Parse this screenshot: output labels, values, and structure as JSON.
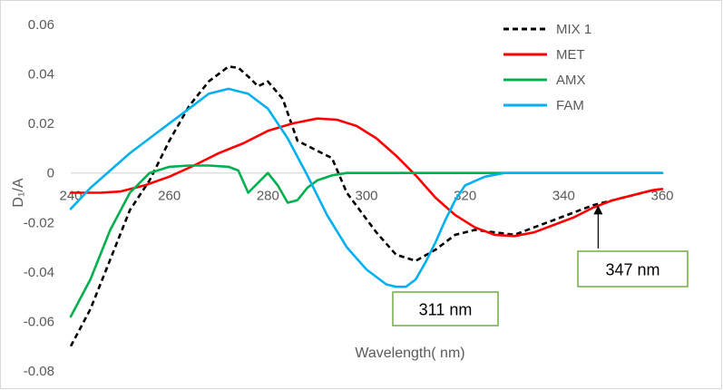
{
  "chart_data": {
    "type": "line",
    "title": "",
    "xlabel": "Wavelength( nm)",
    "ylabel": "D₁/A",
    "xlim": [
      240,
      360
    ],
    "ylim": [
      -0.08,
      0.06
    ],
    "x_ticks": [
      "240",
      "260",
      "280",
      "300",
      "320",
      "340",
      "360"
    ],
    "y_ticks": [
      "0.06",
      "0.04",
      "0.02",
      "0",
      "-0.02",
      "-0.04",
      "-0.06",
      "-0.08"
    ],
    "grid": false,
    "legend_position": "top-right",
    "series": [
      {
        "name": "MIX 1",
        "color": "#000000",
        "dash": "dashed",
        "points": [
          [
            240,
            -0.07
          ],
          [
            244,
            -0.055
          ],
          [
            248,
            -0.035
          ],
          [
            252,
            -0.015
          ],
          [
            256,
            -0.003
          ],
          [
            260,
            0.013
          ],
          [
            264,
            0.027
          ],
          [
            268,
            0.037
          ],
          [
            272,
            0.043
          ],
          [
            274,
            0.0425
          ],
          [
            276,
            0.039
          ],
          [
            278,
            0.035
          ],
          [
            280,
            0.037
          ],
          [
            283,
            0.03
          ],
          [
            286,
            0.013
          ],
          [
            290,
            0.009
          ],
          [
            293,
            0.006
          ],
          [
            296,
            -0.008
          ],
          [
            299,
            -0.016
          ],
          [
            302,
            -0.024
          ],
          [
            306,
            -0.033
          ],
          [
            310,
            -0.0355
          ],
          [
            314,
            -0.031
          ],
          [
            318,
            -0.025
          ],
          [
            322,
            -0.023
          ],
          [
            326,
            -0.024
          ],
          [
            330,
            -0.025
          ],
          [
            334,
            -0.022
          ],
          [
            338,
            -0.019
          ],
          [
            342,
            -0.016
          ],
          [
            346,
            -0.013
          ],
          [
            350,
            -0.011
          ],
          [
            354,
            -0.009
          ],
          [
            358,
            -0.007
          ],
          [
            360,
            -0.0065
          ]
        ]
      },
      {
        "name": "MET",
        "color": "#ff0000",
        "dash": "solid",
        "points": [
          [
            240,
            -0.008
          ],
          [
            246,
            -0.008
          ],
          [
            250,
            -0.0075
          ],
          [
            255,
            -0.005
          ],
          [
            260,
            -0.0015
          ],
          [
            265,
            0.003
          ],
          [
            270,
            0.008
          ],
          [
            275,
            0.012
          ],
          [
            280,
            0.017
          ],
          [
            285,
            0.02
          ],
          [
            290,
            0.022
          ],
          [
            294,
            0.0215
          ],
          [
            298,
            0.019
          ],
          [
            302,
            0.014
          ],
          [
            306,
            0.007
          ],
          [
            310,
            -0.001
          ],
          [
            314,
            -0.01
          ],
          [
            318,
            -0.017
          ],
          [
            322,
            -0.022
          ],
          [
            326,
            -0.025
          ],
          [
            330,
            -0.0255
          ],
          [
            334,
            -0.024
          ],
          [
            338,
            -0.021
          ],
          [
            342,
            -0.018
          ],
          [
            346,
            -0.014
          ],
          [
            350,
            -0.011
          ],
          [
            354,
            -0.009
          ],
          [
            358,
            -0.007
          ],
          [
            360,
            -0.0065
          ]
        ]
      },
      {
        "name": "AMX",
        "color": "#00b050",
        "dash": "solid",
        "points": [
          [
            240,
            -0.058
          ],
          [
            244,
            -0.043
          ],
          [
            248,
            -0.023
          ],
          [
            252,
            -0.008
          ],
          [
            256,
            0.0
          ],
          [
            260,
            0.0025
          ],
          [
            264,
            0.003
          ],
          [
            268,
            0.003
          ],
          [
            272,
            0.0025
          ],
          [
            274,
            0.001
          ],
          [
            276,
            -0.008
          ],
          [
            278,
            -0.004
          ],
          [
            280,
            0.0
          ],
          [
            282,
            -0.005
          ],
          [
            284,
            -0.012
          ],
          [
            286,
            -0.011
          ],
          [
            288,
            -0.006
          ],
          [
            290,
            -0.003
          ],
          [
            293,
            -0.001
          ],
          [
            296,
            0.0
          ],
          [
            300,
            0.0
          ],
          [
            320,
            0.0
          ],
          [
            340,
            0.0
          ],
          [
            360,
            0.0
          ]
        ]
      },
      {
        "name": "FAM",
        "color": "#00b0f0",
        "dash": "solid",
        "points": [
          [
            240,
            -0.0145
          ],
          [
            244,
            -0.006
          ],
          [
            248,
            0.001
          ],
          [
            252,
            0.008
          ],
          [
            256,
            0.014
          ],
          [
            260,
            0.02
          ],
          [
            264,
            0.026
          ],
          [
            268,
            0.032
          ],
          [
            272,
            0.034
          ],
          [
            276,
            0.032
          ],
          [
            280,
            0.026
          ],
          [
            284,
            0.014
          ],
          [
            288,
            -0.001
          ],
          [
            292,
            -0.017
          ],
          [
            296,
            -0.03
          ],
          [
            300,
            -0.039
          ],
          [
            304,
            -0.045
          ],
          [
            306,
            -0.046
          ],
          [
            308,
            -0.046
          ],
          [
            310,
            -0.043
          ],
          [
            312,
            -0.036
          ],
          [
            314,
            -0.028
          ],
          [
            316,
            -0.019
          ],
          [
            318,
            -0.011
          ],
          [
            320,
            -0.005
          ],
          [
            324,
            -0.0015
          ],
          [
            328,
            0.0
          ],
          [
            340,
            0.0
          ],
          [
            360,
            0.0
          ]
        ]
      }
    ],
    "annotations": [
      {
        "text": "311 nm",
        "color": "#70ad47"
      },
      {
        "text": "347 nm",
        "color": "#70ad47",
        "arrow_target_x": 347,
        "arrow_target_y": -0.0127
      }
    ]
  }
}
